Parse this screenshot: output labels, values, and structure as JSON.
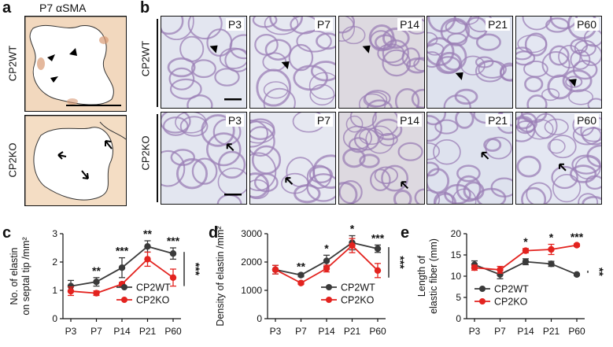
{
  "panel_a": {
    "letter": "a",
    "title": "P7 αSMA",
    "rows": [
      "CP2WT",
      "CP2KO"
    ]
  },
  "panel_b": {
    "letter": "b",
    "rows": [
      "CP2WT",
      "CP2KO"
    ],
    "stages": [
      "P3",
      "P7",
      "P14",
      "P21",
      "P60"
    ]
  },
  "colors": {
    "wt": "#3a3a3a",
    "ko": "#e3231f",
    "stain": "#9b7fb6",
    "tissue_bg": "#dfe3ef"
  },
  "chart_data": [
    {
      "letter": "c",
      "type": "line",
      "ylabel": [
        "No. of elastin",
        "on septal tip /mm²"
      ],
      "categories": [
        "P3",
        "P7",
        "P14",
        "P21",
        "P60"
      ],
      "ylim": [
        0,
        3
      ],
      "yticks": [
        "0",
        "1",
        "2",
        "3"
      ],
      "series": [
        {
          "name": "CP2WT",
          "values": [
            1.15,
            1.3,
            1.8,
            2.55,
            2.3
          ],
          "errors": [
            0.2,
            0.15,
            0.35,
            0.2,
            0.2
          ]
        },
        {
          "name": "CP2KO",
          "values": [
            0.97,
            0.9,
            1.22,
            2.1,
            1.45
          ],
          "errors": [
            0.15,
            0.08,
            0.06,
            0.25,
            0.3
          ]
        }
      ],
      "significance": [
        "",
        "**",
        "***",
        "**",
        "***"
      ],
      "overall": "***",
      "legend": "bottom-right"
    },
    {
      "letter": "d",
      "type": "line",
      "ylabel": [
        "Density of elastin /mm²"
      ],
      "categories": [
        "P3",
        "P7",
        "P14",
        "P21",
        "P60"
      ],
      "ylim": [
        0,
        3000
      ],
      "yticks": [
        "0",
        "1000",
        "2000",
        "3000"
      ],
      "series": [
        {
          "name": "CP2WT",
          "values": [
            1730,
            1540,
            2040,
            2680,
            2470
          ],
          "errors": [
            150,
            60,
            200,
            250,
            130
          ]
        },
        {
          "name": "CP2KO",
          "values": [
            1730,
            1260,
            1770,
            2580,
            1700
          ],
          "errors": [
            150,
            50,
            120,
            250,
            250
          ]
        }
      ],
      "significance": [
        "",
        "**",
        "*",
        "*",
        "***"
      ],
      "overall": "***",
      "legend": "bottom-right"
    },
    {
      "letter": "e",
      "type": "line",
      "ylabel": [
        "Length of",
        "elastic fiber (mm)"
      ],
      "categories": [
        "P3",
        "P7",
        "P14",
        "P21",
        "P60"
      ],
      "ylim": [
        0,
        20
      ],
      "yticks": [
        "0",
        "5",
        "10",
        "15",
        "20"
      ],
      "series": [
        {
          "name": "CP2WT",
          "values": [
            12.7,
            10.4,
            13.4,
            12.9,
            10.4
          ],
          "errors": [
            0.9,
            1.0,
            0.7,
            0.6,
            0.2
          ]
        },
        {
          "name": "CP2KO",
          "values": [
            12.0,
            11.5,
            16.0,
            16.3,
            17.3
          ],
          "errors": [
            0.6,
            0.8,
            0.5,
            1.2,
            0.3
          ]
        }
      ],
      "significance": [
        "",
        "",
        "*",
        "*",
        "***"
      ],
      "overall": "**",
      "legend": "bottom-left"
    }
  ]
}
